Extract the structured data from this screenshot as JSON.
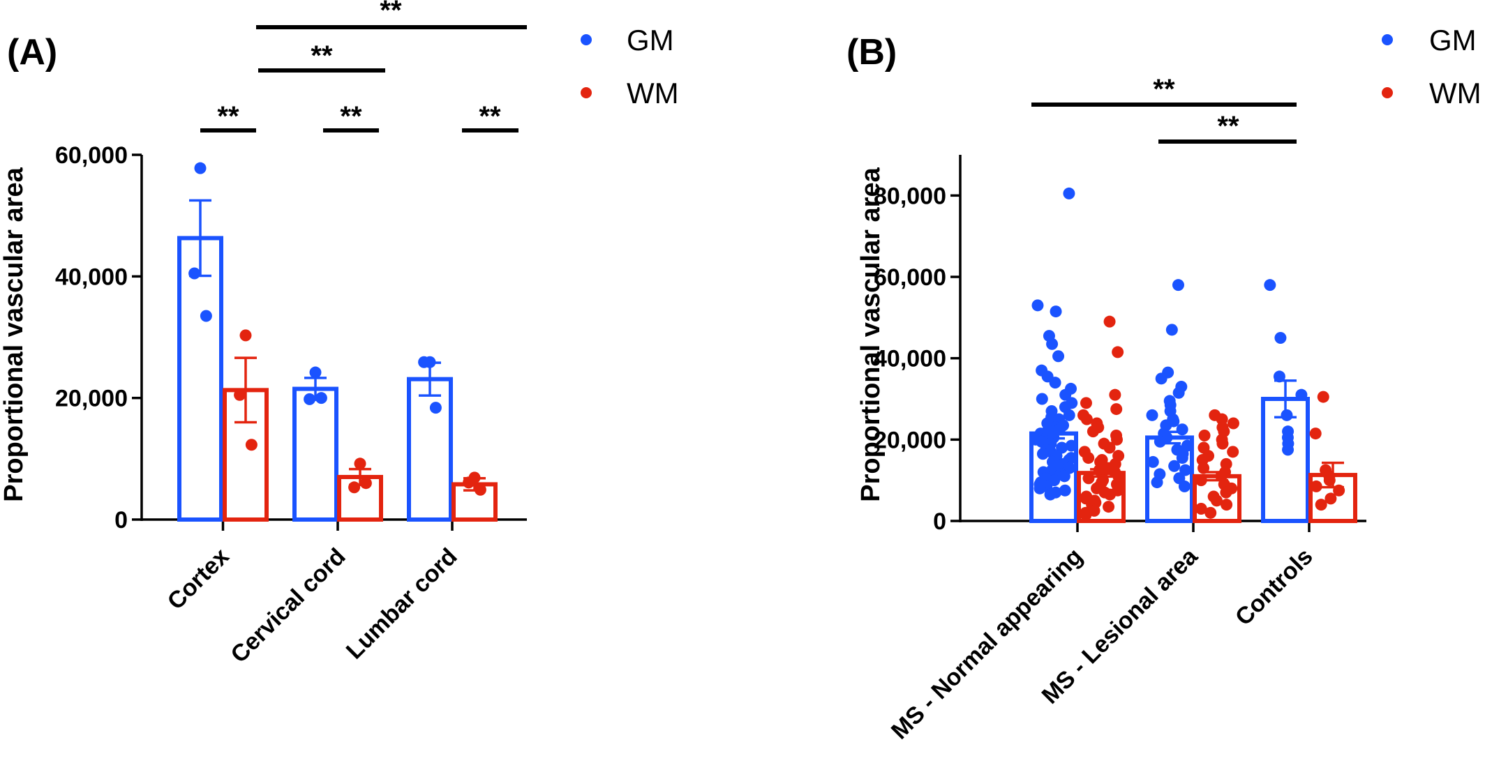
{
  "colors": {
    "GM": "#1a53ff",
    "WM": "#e3240f"
  },
  "chart_data": [
    {
      "panel": "(A)",
      "type": "bar",
      "ylabel": "Proportional vascular area",
      "ylim": [
        0,
        60000
      ],
      "yticks": [
        0,
        20000,
        40000,
        60000
      ],
      "ytick_labels": [
        "0",
        "20,000",
        "40,000",
        "60,000"
      ],
      "categories": [
        "Cortex",
        "Cervical cord",
        "Lumbar cord"
      ],
      "legend": [
        "GM",
        "WM"
      ],
      "legend_position": "top-right",
      "series": [
        {
          "name": "GM",
          "values": [
            46300,
            21500,
            23100
          ],
          "sem": [
            6200,
            1800,
            2700
          ],
          "points": [
            [
              57800,
              40500,
              33500
            ],
            [
              24200,
              19800,
              20000
            ],
            [
              25900,
              25900,
              18400
            ]
          ]
        },
        {
          "name": "WM",
          "values": [
            21300,
            7000,
            5800
          ],
          "sem": [
            5300,
            1300,
            1000
          ],
          "points": [
            [
              30300,
              20500,
              12300
            ],
            [
              9200,
              5300,
              6000
            ],
            [
              6900,
              6100,
              4900
            ]
          ]
        }
      ],
      "significance": [
        {
          "label": "**",
          "from": "Cortex GM",
          "to": "Cortex WM"
        },
        {
          "label": "**",
          "from": "Cervical cord GM",
          "to": "Cervical cord WM"
        },
        {
          "label": "**",
          "from": "Lumbar cord GM",
          "to": "Lumbar cord WM"
        },
        {
          "label": "**",
          "from": "Cortex",
          "to": "Cervical cord"
        },
        {
          "label": "**",
          "from": "Cortex",
          "to": "Lumbar cord"
        }
      ]
    },
    {
      "panel": "(B)",
      "type": "bar",
      "ylabel": "Proportional vascular area",
      "ylim": [
        0,
        90000
      ],
      "yticks": [
        0,
        20000,
        40000,
        60000,
        80000
      ],
      "ytick_labels": [
        "0",
        "20,000",
        "40,000",
        "60,000",
        "80,000"
      ],
      "categories": [
        "MS - Normal appearing",
        "MS - Lesional area",
        "Controls"
      ],
      "legend": [
        "GM",
        "WM"
      ],
      "legend_position": "top-right",
      "series": [
        {
          "name": "GM",
          "values": [
            21500,
            20500,
            30000
          ],
          "sem": [
            1200,
            1400,
            4500
          ],
          "points": [
            [
              80500,
              53000,
              51500,
              45500,
              43500,
              40500,
              37000,
              35500,
              34000,
              32500,
              31000,
              30000,
              29000,
              28000,
              27000,
              26000,
              25500,
              25000,
              24000,
              23500,
              23000,
              22500,
              22000,
              21500,
              21000,
              20500,
              20000,
              19500,
              19000,
              18500,
              18000,
              17500,
              17000,
              16500,
              16000,
              15500,
              15000,
              14500,
              14000,
              13500,
              13000,
              12500,
              12000,
              11500,
              11000,
              10500,
              10000,
              9500,
              9000,
              8500,
              8000,
              7500,
              7000,
              6500
            ],
            [
              58000,
              47000,
              36500,
              35000,
              33000,
              31500,
              29500,
              28500,
              27000,
              26000,
              25000,
              24500,
              23500,
              22500,
              21500,
              20500,
              19500,
              18500,
              17500,
              16500,
              15500,
              14500,
              13500,
              12500,
              11500,
              10500,
              9500,
              8500
            ],
            [
              58000,
              45000,
              35500,
              31000,
              26000,
              22000,
              20500,
              19000,
              17500
            ]
          ]
        },
        {
          "name": "WM",
          "values": [
            11800,
            11000,
            11300
          ],
          "sem": [
            900,
            1000,
            3000
          ],
          "points": [
            [
              49000,
              41500,
              31000,
              29000,
              27500,
              26000,
              25000,
              24000,
              23000,
              22000,
              21000,
              20000,
              19000,
              18000,
              17000,
              16000,
              15500,
              15000,
              14500,
              14000,
              13500,
              13000,
              12500,
              12000,
              11500,
              11000,
              10500,
              10000,
              9500,
              9000,
              8500,
              8000,
              7500,
              7000,
              6500,
              6000,
              5500,
              5000,
              4500,
              4000,
              3500,
              3000,
              2500,
              2000,
              1500
            ],
            [
              26000,
              25000,
              24000,
              23000,
              22000,
              21000,
              20000,
              19000,
              18000,
              17000,
              16000,
              15000,
              14000,
              13000,
              12000,
              11000,
              10000,
              9000,
              8000,
              7000,
              6000,
              5000,
              4000,
              3000,
              2000
            ],
            [
              30500,
              21500,
              12500,
              11000,
              10000,
              8500,
              7500,
              5500,
              4000
            ]
          ]
        }
      ],
      "significance": [
        {
          "label": "**",
          "from": "MS - Normal appearing",
          "to": "Controls"
        },
        {
          "label": "**",
          "from": "MS - Lesional area",
          "to": "Controls"
        }
      ]
    }
  ]
}
